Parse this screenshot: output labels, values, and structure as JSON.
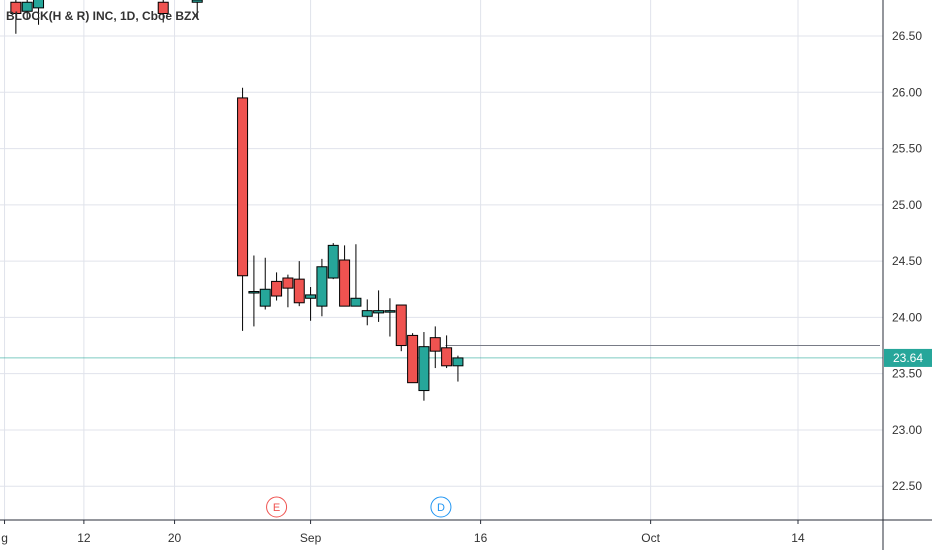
{
  "chart_data": {
    "type": "candlestick",
    "title": "BLOCK(H & R) INC, 1D, Cboe BZX",
    "ylim": [
      22.2,
      26.82
    ],
    "y_ticks": [
      22.5,
      23.0,
      23.5,
      24.0,
      24.5,
      25.0,
      25.5,
      26.0,
      26.5
    ],
    "y_tick_labels": [
      "22.50",
      "23.00",
      "23.50",
      "24.00",
      "24.50",
      "25.00",
      "25.50",
      "26.00",
      "26.50"
    ],
    "x_tick_labels": [
      {
        "label": "g",
        "day": 5
      },
      {
        "label": "12",
        "day": 12
      },
      {
        "label": "20",
        "day": 20
      },
      {
        "label": "Sep",
        "day": 32
      },
      {
        "label": "16",
        "day": 47
      },
      {
        "label": "Oct",
        "day": 62
      },
      {
        "label": "14",
        "day": 75
      }
    ],
    "x_range_days": [
      4.6,
      82.5
    ],
    "last_price": 23.64,
    "last_price_label": "23.64",
    "horizontal_line": {
      "value": 23.75,
      "start_day": 43.9
    },
    "colors": {
      "up": "#26a69a",
      "down": "#ef5350",
      "price_line": "#26a69a",
      "grid": "#e0e3eb",
      "hline": "#787b86"
    },
    "events": [
      {
        "label": "E",
        "day": 29,
        "color": "#ef5350"
      },
      {
        "label": "D",
        "day": 43.5,
        "color": "#2196f3"
      }
    ],
    "candles": [
      {
        "day": 6,
        "open": 26.8,
        "high": 26.95,
        "low": 26.52,
        "close": 26.7
      },
      {
        "day": 7,
        "open": 26.72,
        "high": 26.88,
        "low": 26.65,
        "close": 26.8
      },
      {
        "day": 8,
        "open": 26.75,
        "high": 26.9,
        "low": 26.6,
        "close": 26.85
      },
      {
        "day": 19,
        "open": 26.8,
        "high": 26.95,
        "low": 26.62,
        "close": 26.7
      },
      {
        "day": 22,
        "open": 26.8,
        "high": 26.95,
        "low": 26.65,
        "close": 26.82
      },
      {
        "day": 26,
        "open": 25.95,
        "high": 26.04,
        "low": 23.88,
        "close": 24.37
      },
      {
        "day": 27,
        "open": 24.22,
        "high": 24.55,
        "low": 23.92,
        "close": 24.23
      },
      {
        "day": 28,
        "open": 24.1,
        "high": 24.53,
        "low": 24.07,
        "close": 24.25
      },
      {
        "day": 29,
        "open": 24.32,
        "high": 24.4,
        "low": 24.15,
        "close": 24.19
      },
      {
        "day": 30,
        "open": 24.35,
        "high": 24.38,
        "low": 24.09,
        "close": 24.26
      },
      {
        "day": 31,
        "open": 24.34,
        "high": 24.5,
        "low": 24.1,
        "close": 24.13
      },
      {
        "day": 32,
        "open": 24.17,
        "high": 24.27,
        "low": 23.97,
        "close": 24.2
      },
      {
        "day": 33,
        "open": 24.1,
        "high": 24.52,
        "low": 24.01,
        "close": 24.45
      },
      {
        "day": 34,
        "open": 24.35,
        "high": 24.66,
        "low": 24.34,
        "close": 24.64
      },
      {
        "day": 35,
        "open": 24.51,
        "high": 24.64,
        "low": 24.1,
        "close": 24.1
      },
      {
        "day": 36,
        "open": 24.1,
        "high": 24.65,
        "low": 24.1,
        "close": 24.17
      },
      {
        "day": 37,
        "open": 24.01,
        "high": 24.16,
        "low": 23.93,
        "close": 24.06
      },
      {
        "day": 38,
        "open": 24.04,
        "high": 24.24,
        "low": 23.96,
        "close": 24.06
      },
      {
        "day": 39,
        "open": 24.05,
        "high": 24.17,
        "low": 23.83,
        "close": 24.06
      },
      {
        "day": 40,
        "open": 24.11,
        "high": 24.11,
        "low": 23.7,
        "close": 23.75
      },
      {
        "day": 41,
        "open": 23.84,
        "high": 23.86,
        "low": 23.42,
        "close": 23.42
      },
      {
        "day": 42,
        "open": 23.35,
        "high": 23.87,
        "low": 23.26,
        "close": 23.74
      },
      {
        "day": 43,
        "open": 23.82,
        "high": 23.92,
        "low": 23.55,
        "close": 23.7
      },
      {
        "day": 44,
        "open": 23.73,
        "high": 23.84,
        "low": 23.55,
        "close": 23.57
      },
      {
        "day": 45,
        "open": 23.57,
        "high": 23.66,
        "low": 23.43,
        "close": 23.64
      }
    ]
  }
}
